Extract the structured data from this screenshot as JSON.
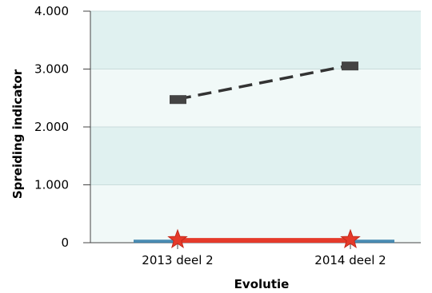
{
  "chart_data": {
    "type": "line",
    "xlabel": "Evolutie",
    "ylabel": "Spreiding indicator",
    "categories": [
      "2013 deel 2",
      "2014 deel 2"
    ],
    "ylim": [
      0,
      4000
    ],
    "yticks": [
      0,
      1000,
      2000,
      3000,
      4000
    ],
    "ytick_labels": [
      "0",
      "1.000",
      "2.000",
      "3.000",
      "4.000"
    ],
    "grid": true,
    "series": [
      {
        "values": [
          2480,
          3060
        ],
        "style": "dashed",
        "color": "#333333",
        "marker": "rect"
      },
      {
        "values": [
          40,
          40
        ],
        "style": "solid",
        "color": "#e53a2a",
        "marker": "star"
      },
      {
        "values": [
          25,
          25
        ],
        "style": "solid",
        "color": "#2e7aa8",
        "marker": "none"
      }
    ],
    "colors": {
      "band_dark": "#e0f1f0",
      "band_light": "#f1f9f8",
      "axis": "#444444"
    }
  }
}
